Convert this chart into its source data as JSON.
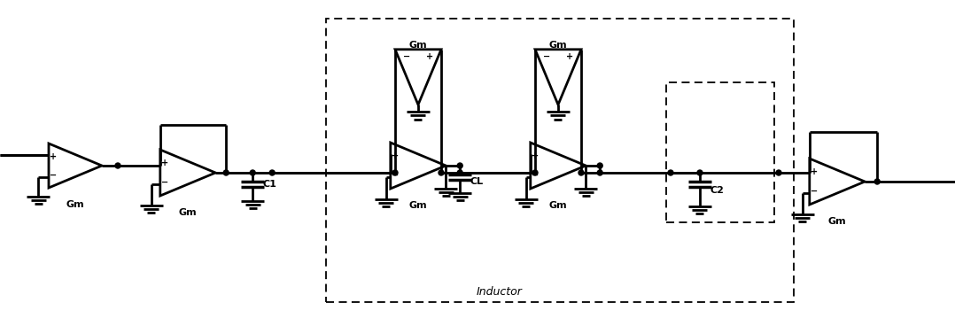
{
  "bg_color": "#ffffff",
  "lw": 2.0,
  "lw_thin": 1.3,
  "gm_label": "Gm",
  "c1_label": "C1",
  "cl_label": "CL",
  "c2_label": "C2",
  "inductor_label": "Inductor",
  "dot_r": 0.03,
  "figw": 10.78,
  "figh": 3.59
}
